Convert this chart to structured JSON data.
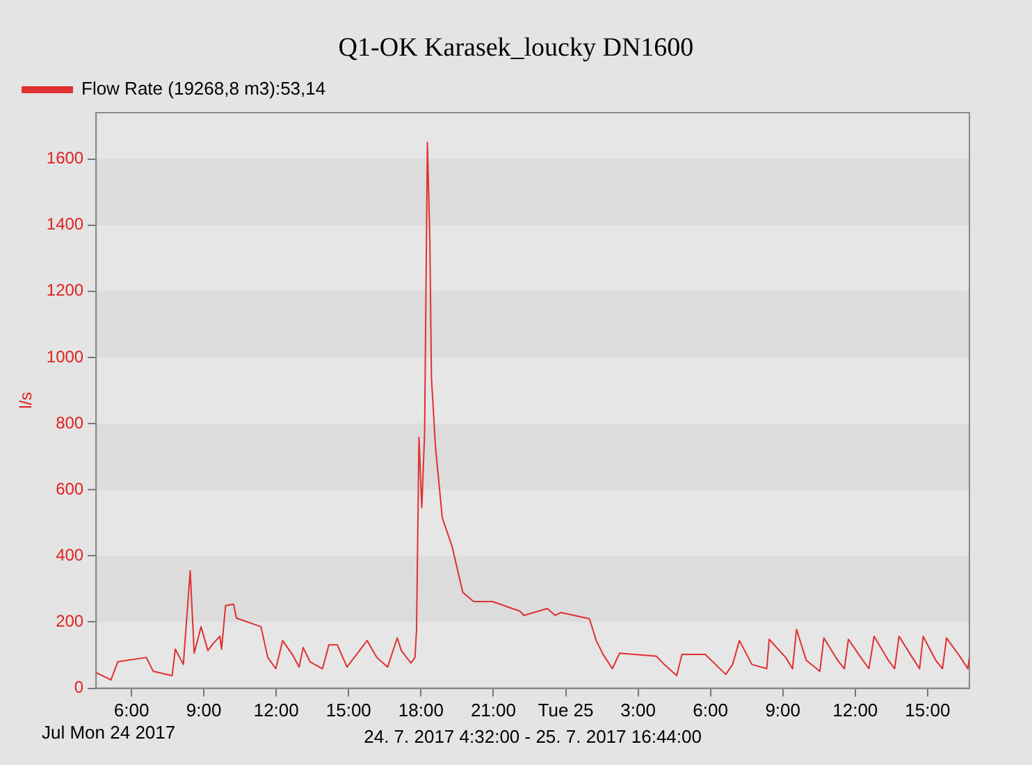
{
  "chart_data": {
    "type": "line",
    "title": "Q1-OK Karasek_loucky DN1600",
    "xlabel": "24. 7. 2017 4:32:00 - 25. 7. 2017 16:44:00",
    "ylabel": "l/s",
    "annotations": [
      "Jul Mon 24 2017"
    ],
    "xlim": [
      "2017-07-24T04:32",
      "2017-07-25T16:44"
    ],
    "xticks": [
      {
        "value": "2017-07-24T06:00",
        "label": "6:00"
      },
      {
        "value": "2017-07-24T09:00",
        "label": "9:00"
      },
      {
        "value": "2017-07-24T12:00",
        "label": "12:00"
      },
      {
        "value": "2017-07-24T15:00",
        "label": "15:00"
      },
      {
        "value": "2017-07-24T18:00",
        "label": "18:00"
      },
      {
        "value": "2017-07-24T21:00",
        "label": "21:00"
      },
      {
        "value": "2017-07-25T00:00",
        "label": "Tue 25"
      },
      {
        "value": "2017-07-25T03:00",
        "label": "3:00"
      },
      {
        "value": "2017-07-25T06:00",
        "label": "6:00"
      },
      {
        "value": "2017-07-25T09:00",
        "label": "9:00"
      },
      {
        "value": "2017-07-25T12:00",
        "label": "12:00"
      },
      {
        "value": "2017-07-25T15:00",
        "label": "15:00"
      }
    ],
    "ylim": [
      0,
      1740
    ],
    "yticks": [
      0,
      200,
      400,
      600,
      800,
      1000,
      1200,
      1400,
      1600
    ],
    "bands": [
      {
        "axis": "y",
        "from": 200,
        "to": 400,
        "color": "#dcdcdc"
      },
      {
        "axis": "y",
        "from": 600,
        "to": 800,
        "color": "#dcdcdc"
      },
      {
        "axis": "y",
        "from": 1000,
        "to": 1200,
        "color": "#dcdcdc"
      },
      {
        "axis": "y",
        "from": 1400,
        "to": 1600,
        "color": "#dcdcdc"
      }
    ],
    "legend": "top left",
    "marker": "none",
    "line_style": "solid",
    "series": [
      {
        "name": "Flow Rate (19268,8 m3):53,14",
        "color": "#e03030",
        "x": [
          "2017-07-24T04:32",
          "2017-07-24T05:09",
          "2017-07-24T05:26",
          "2017-07-24T06:37",
          "2017-07-24T06:54",
          "2017-07-24T07:41",
          "2017-07-24T07:49",
          "2017-07-24T08:09",
          "2017-07-24T08:26",
          "2017-07-24T08:36",
          "2017-07-24T08:53",
          "2017-07-24T09:10",
          "2017-07-24T09:23",
          "2017-07-24T09:40",
          "2017-07-24T09:44",
          "2017-07-24T09:54",
          "2017-07-24T10:14",
          "2017-07-24T10:21",
          "2017-07-24T11:22",
          "2017-07-24T11:39",
          "2017-07-24T11:59",
          "2017-07-24T12:16",
          "2017-07-24T12:40",
          "2017-07-24T12:57",
          "2017-07-24T13:07",
          "2017-07-24T13:24",
          "2017-07-24T13:55",
          "2017-07-24T14:11",
          "2017-07-24T14:32",
          "2017-07-24T14:56",
          "2017-07-24T15:46",
          "2017-07-24T16:10",
          "2017-07-24T16:37",
          "2017-07-24T17:01",
          "2017-07-24T17:11",
          "2017-07-24T17:35",
          "2017-07-24T17:45",
          "2017-07-24T17:49",
          "2017-07-24T17:55",
          "2017-07-24T18:02",
          "2017-07-24T18:09",
          "2017-07-24T18:16",
          "2017-07-24T18:22",
          "2017-07-24T18:26",
          "2017-07-24T18:36",
          "2017-07-24T18:53",
          "2017-07-24T19:17",
          "2017-07-24T19:44",
          "2017-07-24T20:11",
          "2017-07-24T20:58",
          "2017-07-24T22:06",
          "2017-07-24T22:16",
          "2017-07-24T23:14",
          "2017-07-24T23:34",
          "2017-07-24T23:48",
          "2017-07-25T00:59",
          "2017-07-25T01:16",
          "2017-07-25T01:33",
          "2017-07-25T01:56",
          "2017-07-25T02:14",
          "2017-07-25T03:45",
          "2017-07-25T04:05",
          "2017-07-25T04:36",
          "2017-07-25T04:49",
          "2017-07-25T05:47",
          "2017-07-25T06:38",
          "2017-07-25T06:55",
          "2017-07-25T07:12",
          "2017-07-25T07:43",
          "2017-07-25T08:20",
          "2017-07-25T08:26",
          "2017-07-25T09:07",
          "2017-07-25T09:24",
          "2017-07-25T09:34",
          "2017-07-25T09:58",
          "2017-07-25T10:32",
          "2017-07-25T10:42",
          "2017-07-25T11:16",
          "2017-07-25T11:33",
          "2017-07-25T11:43",
          "2017-07-25T12:14",
          "2017-07-25T12:34",
          "2017-07-25T12:47",
          "2017-07-25T13:22",
          "2017-07-25T13:38",
          "2017-07-25T13:49",
          "2017-07-25T14:22",
          "2017-07-25T14:40",
          "2017-07-25T14:49",
          "2017-07-25T15:20",
          "2017-07-25T15:37",
          "2017-07-25T15:47",
          "2017-07-25T16:22",
          "2017-07-25T16:40",
          "2017-07-25T16:44"
        ],
        "values": [
          47,
          25,
          80,
          93,
          51,
          38,
          118,
          72,
          355,
          106,
          186,
          114,
          135,
          157,
          118,
          250,
          254,
          212,
          186,
          93,
          59,
          144,
          102,
          64,
          123,
          80,
          59,
          131,
          131,
          64,
          144,
          93,
          64,
          152,
          114,
          76,
          93,
          178,
          758,
          546,
          770,
          1650,
          1360,
          940,
          730,
          515,
          430,
          290,
          262,
          262,
          233,
          220,
          241,
          220,
          229,
          210,
          144,
          102,
          59,
          106,
          97,
          72,
          38,
          102,
          102,
          42,
          72,
          144,
          72,
          59,
          148,
          93,
          59,
          178,
          85,
          51,
          152,
          85,
          59,
          148,
          93,
          59,
          157,
          85,
          59,
          157,
          93,
          59,
          157,
          85,
          59,
          152,
          93,
          59,
          93
        ]
      }
    ]
  }
}
